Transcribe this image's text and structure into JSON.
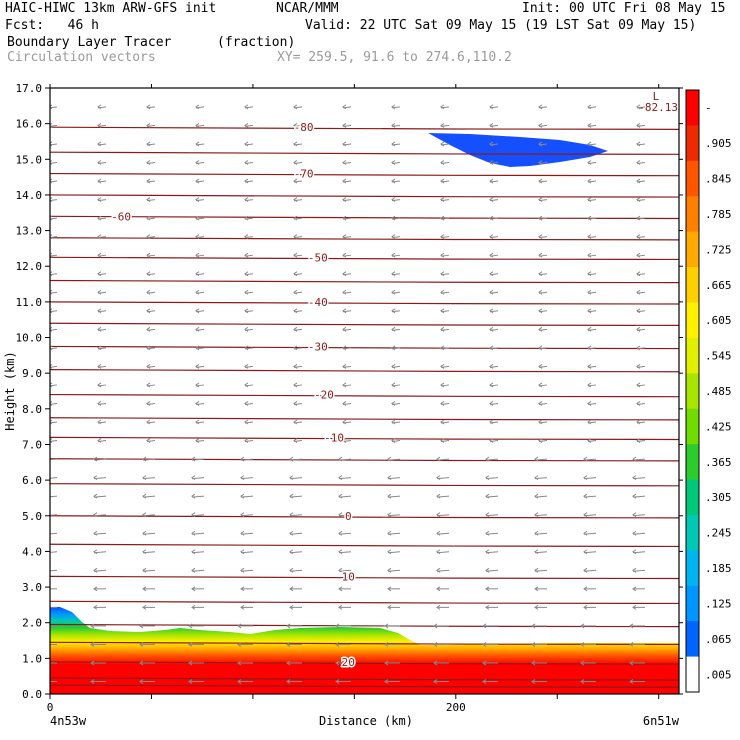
{
  "header": {
    "model": "HAIC-HIWC 13km ARW-GFS init",
    "center": "NCAR/MMM",
    "init": "Init: 00 UTC Fri 08 May 15",
    "fcst": "Fcst:   46 h",
    "valid": "Valid: 22 UTC Sat 09 May 15 (19 LST Sat 09 May 15)",
    "field": "Boundary Layer Tracer",
    "units": "(fraction)",
    "vectors": "Circulation vectors",
    "xy": "XY= 259.5, 91.6 to 274.6,110.2"
  },
  "chart_data": {
    "type": "heatmap",
    "ylabel": "Height (km)",
    "xlabel": "Distance (km)",
    "x_left_label": "4n53w",
    "x_right_label": "6n51w",
    "xlim": [
      0,
      310
    ],
    "ylim": [
      0.0,
      17.0
    ],
    "x_ticks": [
      {
        "value": 0,
        "label": "0"
      },
      {
        "value": 200,
        "label": "200"
      }
    ],
    "y_ticks": [
      "0.0",
      "1.0",
      "2.0",
      "3.0",
      "4.0",
      "5.0",
      "6.0",
      "7.0",
      "8.0",
      "9.0",
      "10.0",
      "11.0",
      "12.0",
      "13.0",
      "14.0",
      "15.0",
      "16.0",
      "17.0"
    ],
    "colorbar": {
      "labels": [
        "-",
        ".905",
        ".845",
        ".785",
        ".725",
        ".665",
        ".605",
        ".545",
        ".485",
        ".425",
        ".365",
        ".305",
        ".245",
        ".185",
        ".125",
        ".065",
        ".005"
      ],
      "colors": [
        "#ff0000",
        "#ee2a00",
        "#ff5500",
        "#ff8000",
        "#ffaa00",
        "#ffd000",
        "#fff000",
        "#e0f000",
        "#a8e600",
        "#70dc00",
        "#2ccc2c",
        "#00c87a",
        "#00c8b4",
        "#00b4f0",
        "#0096ff",
        "#0064ff",
        "#ffffff"
      ]
    },
    "isotherms": [
      {
        "label": "20",
        "value": 20,
        "x": 147,
        "y": 0.9
      },
      {
        "label": "10",
        "value": 10,
        "x": 147,
        "y": 3.3
      },
      {
        "label": "0",
        "value": 0,
        "x": 147,
        "y": 5.0
      },
      {
        "label": "-10",
        "value": -10,
        "x": 140,
        "y": 7.2
      },
      {
        "label": "-20",
        "value": -20,
        "x": 135,
        "y": 8.4
      },
      {
        "label": "-30",
        "value": -30,
        "x": 132,
        "y": 9.75
      },
      {
        "label": "-40",
        "value": -40,
        "x": 132,
        "y": 11.0
      },
      {
        "label": "-50",
        "value": -50,
        "x": 132,
        "y": 12.25
      },
      {
        "label": "-60",
        "value": -60,
        "x": 35,
        "y": 13.4
      },
      {
        "label": "-70",
        "value": -70,
        "x": 125,
        "y": 14.6
      },
      {
        "label": "-80",
        "value": -80,
        "x": 125,
        "y": 15.9
      }
    ],
    "min_label": {
      "text": "L",
      "value": "-82.13",
      "x": 297,
      "y": 16.95
    }
  }
}
